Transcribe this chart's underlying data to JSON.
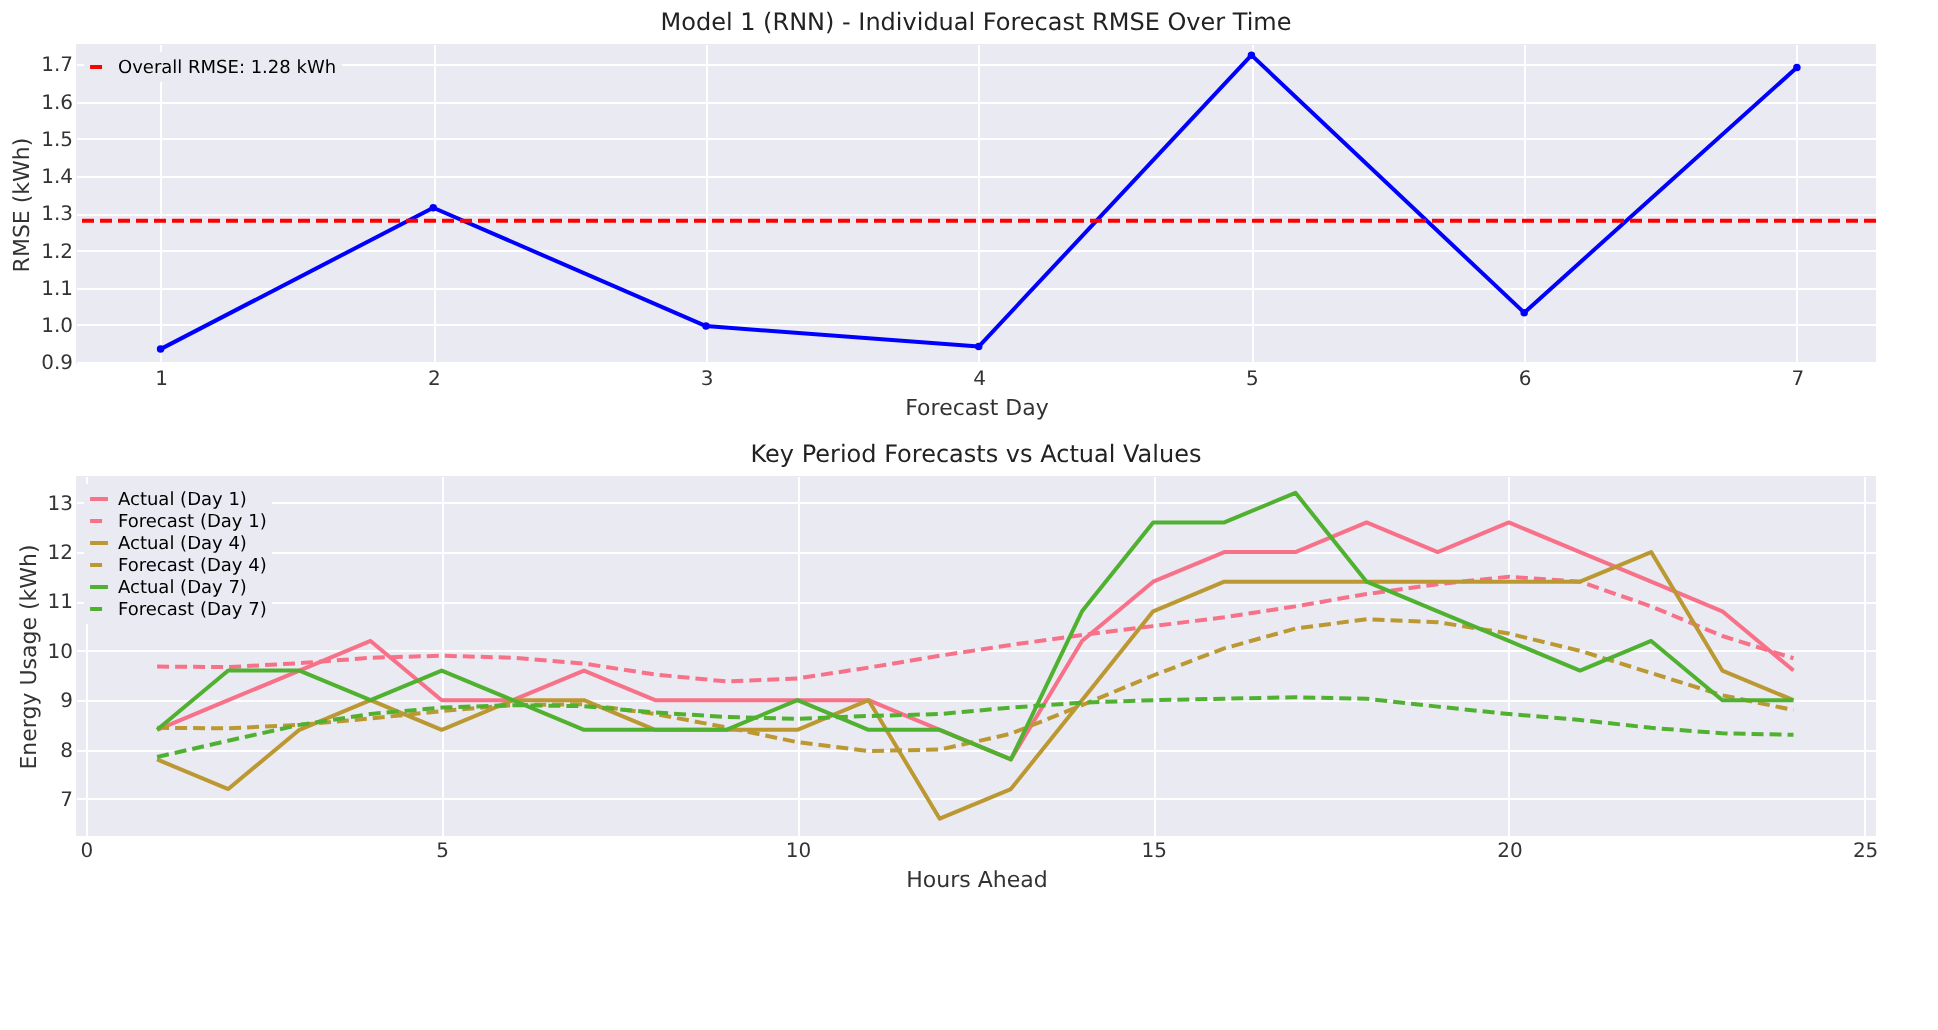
{
  "chart_data": [
    {
      "type": "line",
      "title": "Model 1 (RNN) - Individual Forecast RMSE Over Time",
      "xlabel": "Forecast Day",
      "ylabel": "RMSE (kWh)",
      "x": [
        1,
        2,
        3,
        4,
        5,
        6,
        7
      ],
      "series": [
        {
          "color": "#0000ff",
          "line_style": "solid",
          "values": [
            0.935,
            1.315,
            0.997,
            0.942,
            1.725,
            1.033,
            1.692
          ]
        }
      ],
      "ref_lines": [
        {
          "axis": "y",
          "value": 1.28,
          "label": "Overall RMSE: 1.28 kWh",
          "color": "#ff0000",
          "line_style": "dashed"
        }
      ],
      "xlim": [
        0.69,
        7.29
      ],
      "ylim": [
        0.895,
        1.755
      ],
      "xticks": [
        1,
        2,
        3,
        4,
        5,
        6,
        7
      ],
      "yticks": [
        0.9,
        {
          "value": 1,
          "label": "1.0"
        },
        1.1,
        1.2,
        1.3,
        1.4,
        1.5,
        1.6,
        1.7
      ],
      "marker": "circle",
      "grid": true,
      "legend": "top left"
    },
    {
      "type": "line",
      "title": "Key Period Forecasts vs Actual Values",
      "xlabel": "Hours Ahead",
      "ylabel": "Energy Usage (kWh)",
      "x": [
        1,
        2,
        3,
        4,
        5,
        6,
        7,
        8,
        9,
        10,
        11,
        12,
        13,
        14,
        15,
        16,
        17,
        18,
        19,
        20,
        21,
        22,
        23,
        24
      ],
      "series": [
        {
          "name": "Actual (Day 1)",
          "color": "#f77189",
          "line_style": "solid",
          "values": [
            8.4,
            9.0,
            9.6,
            10.2,
            9.0,
            9.0,
            9.6,
            9.0,
            9.0,
            9.0,
            9.0,
            8.4,
            7.8,
            10.2,
            11.4,
            12.0,
            12.0,
            12.6,
            12.0,
            12.6,
            12.0,
            11.4,
            10.8,
            9.6
          ]
        },
        {
          "name": "Forecast (Day 1)",
          "color": "#f77189",
          "line_style": "dashed",
          "values": [
            9.68,
            9.67,
            9.75,
            9.86,
            9.9,
            9.86,
            9.74,
            9.52,
            9.38,
            9.44,
            9.66,
            9.9,
            10.12,
            10.32,
            10.5,
            10.68,
            10.9,
            11.15,
            11.35,
            11.5,
            11.4,
            10.9,
            10.3,
            9.85
          ]
        },
        {
          "name": "Actual (Day 4)",
          "color": "#bb9832",
          "line_style": "solid",
          "values": [
            7.8,
            7.2,
            8.4,
            9.0,
            8.4,
            9.0,
            9.0,
            8.4,
            8.4,
            8.4,
            9.0,
            6.6,
            7.2,
            9.0,
            10.8,
            11.4,
            11.4,
            11.4,
            11.4,
            11.4,
            11.4,
            12.0,
            9.6,
            9.0
          ]
        },
        {
          "name": "Forecast (Day 4)",
          "color": "#bb9832",
          "line_style": "dashed",
          "values": [
            8.44,
            8.43,
            8.5,
            8.63,
            8.78,
            8.9,
            8.92,
            8.72,
            8.45,
            8.15,
            7.97,
            8.0,
            8.32,
            8.9,
            9.5,
            10.05,
            10.45,
            10.64,
            10.58,
            10.35,
            10.0,
            9.55,
            9.1,
            8.8
          ]
        },
        {
          "name": "Actual (Day 7)",
          "color": "#50b131",
          "line_style": "solid",
          "values": [
            8.4,
            9.6,
            9.6,
            9.0,
            9.6,
            9.0,
            8.4,
            8.4,
            8.4,
            9.0,
            8.4,
            8.4,
            7.8,
            10.8,
            12.6,
            12.6,
            13.2,
            11.4,
            10.8,
            10.2,
            9.6,
            10.2,
            9.0,
            9.0
          ]
        },
        {
          "name": "Forecast (Day 7)",
          "color": "#50b131",
          "line_style": "dashed",
          "values": [
            7.85,
            8.18,
            8.5,
            8.72,
            8.85,
            8.9,
            8.88,
            8.75,
            8.66,
            8.62,
            8.68,
            8.72,
            8.85,
            8.95,
            9.0,
            9.03,
            9.06,
            9.03,
            8.87,
            8.72,
            8.6,
            8.44,
            8.33,
            8.3
          ]
        }
      ],
      "xlim": [
        -0.14,
        25.16
      ],
      "ylim": [
        6.25,
        13.54
      ],
      "xticks": [
        0,
        5,
        10,
        15,
        20,
        25
      ],
      "yticks": [
        7,
        8,
        9,
        10,
        11,
        12,
        13
      ],
      "grid": true,
      "legend": "top left"
    }
  ]
}
